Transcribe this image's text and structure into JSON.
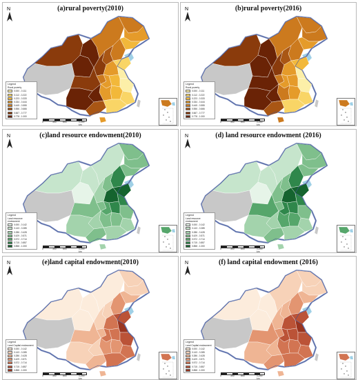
{
  "panels": [
    {
      "title": "(a)rural poverty(2010)",
      "legend_heading": "Legend",
      "legend_subtitle": "Rural poverty",
      "classes": [
        "0.000 - 0.111",
        "0.112 - 0.222",
        "0.223 - 0.333",
        "0.334 - 0.444",
        "0.445 - 0.555",
        "0.556 - 0.666",
        "0.667 - 0.777",
        "0.778 - 1.000"
      ],
      "colors": [
        "#fcefa8",
        "#f9d566",
        "#f2b83a",
        "#e59b2a",
        "#cc7a1e",
        "#a95614",
        "#8a3b0c",
        "#6a2306"
      ],
      "palette": "poverty",
      "variant": "2010"
    },
    {
      "title": "(b)rural poverty(2016)",
      "legend_heading": "Legend",
      "legend_subtitle": "Rural poverty",
      "classes": [
        "0.000 - 0.111",
        "0.112 - 0.222",
        "0.223 - 0.333",
        "0.334 - 0.444",
        "0.445 - 0.555",
        "0.556 - 0.666",
        "0.667 - 0.777",
        "0.778 - 1.000"
      ],
      "colors": [
        "#fcefa8",
        "#f9d566",
        "#f2b83a",
        "#e59b2a",
        "#cc7a1e",
        "#a95614",
        "#8a3b0c",
        "#6a2306"
      ],
      "palette": "poverty",
      "variant": "2016"
    },
    {
      "title": "(c)land resource endowment(2010)",
      "legend_heading": "Legend",
      "legend_subtitle": "Land resource endowment",
      "classes": [
        "0.000 - 0.142",
        "0.143 - 0.285",
        "0.286 - 0.428",
        "0.429 - 0.571",
        "0.572 - 0.714",
        "0.715 - 0.857",
        "0.858 - 1.000"
      ],
      "colors": [
        "#e6f4e8",
        "#c6e5cc",
        "#a3d3ac",
        "#7fbf8c",
        "#56a66b",
        "#2f874b",
        "#15642f"
      ],
      "palette": "land",
      "variant": "2010"
    },
    {
      "title": "(d) land resource endowment (2016)",
      "legend_heading": "Legend",
      "legend_subtitle": "Land resource endowment",
      "classes": [
        "0.000 - 0.142",
        "0.143 - 0.285",
        "0.286 - 0.428",
        "0.429 - 0.571",
        "0.572 - 0.714",
        "0.715 - 0.857",
        "0.858 - 1.000"
      ],
      "colors": [
        "#e6f4e8",
        "#c6e5cc",
        "#a3d3ac",
        "#7fbf8c",
        "#56a66b",
        "#2f874b",
        "#15642f"
      ],
      "palette": "land",
      "variant": "2016"
    },
    {
      "title": "(e)land capital endowment(2010)",
      "legend_heading": "Legend",
      "legend_subtitle": "Land Capital endowment",
      "classes": [
        "0.000 - 0.142",
        "0.143 - 0.285",
        "0.286 - 0.428",
        "0.429 - 0.571",
        "0.572 - 0.714",
        "0.715 - 0.857",
        "0.858 - 1.000"
      ],
      "colors": [
        "#fcecdc",
        "#f7d2b8",
        "#efb594",
        "#e39571",
        "#d27452",
        "#bb5337",
        "#9a3520"
      ],
      "palette": "capital",
      "variant": "2010"
    },
    {
      "title": "(f) land capital endowment (2016)",
      "legend_heading": "Legend",
      "legend_subtitle": "Land Capital endowment",
      "classes": [
        "0.000 - 0.142",
        "0.143 - 0.285",
        "0.286 - 0.428",
        "0.429 - 0.571",
        "0.572 - 0.714",
        "0.715 - 0.857",
        "0.858 - 1.000"
      ],
      "colors": [
        "#fcecdc",
        "#f7d2b8",
        "#efb594",
        "#e39571",
        "#d27452",
        "#bb5337",
        "#9a3520"
      ],
      "palette": "capital",
      "variant": "2016"
    }
  ],
  "north_label": "N",
  "scale_labels": [
    "0",
    "300",
    "600",
    "1,200 km"
  ],
  "nodata_color": "#c8c8c8",
  "sea_color": "#9fd0e6",
  "border_color": "#ffffff"
}
